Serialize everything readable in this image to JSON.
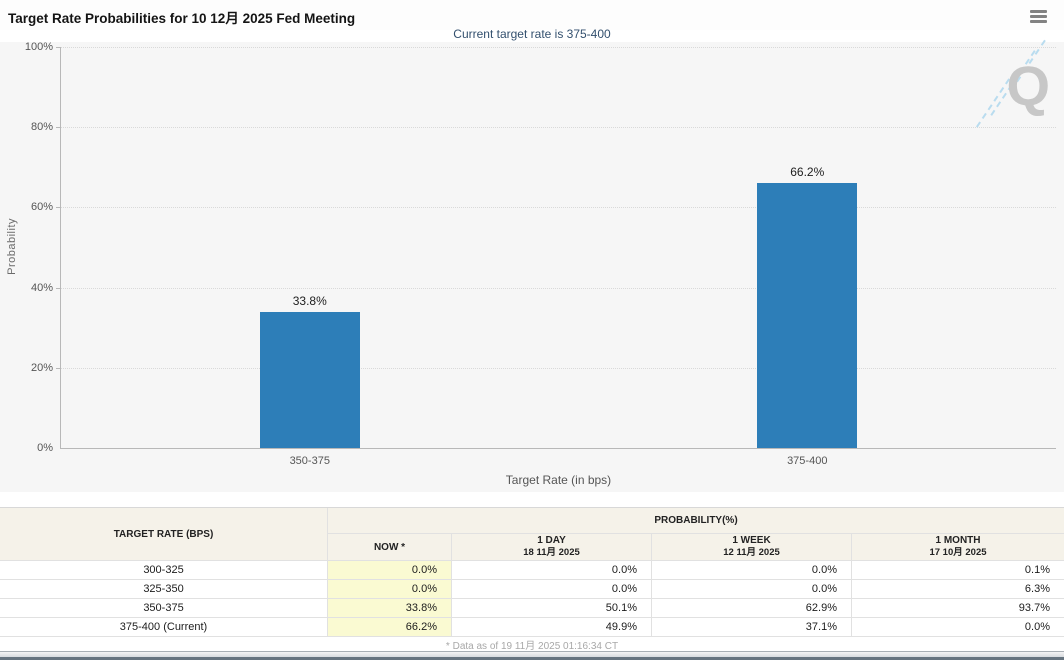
{
  "header": {
    "title": "Target Rate Probabilities for 10 12月 2025 Fed Meeting"
  },
  "subtitle": "Current target rate is 375-400",
  "chart_data": {
    "type": "bar",
    "title": "Target Rate Probabilities for 10 12月 2025 Fed Meeting",
    "categories": [
      "350-375",
      "375-400"
    ],
    "values": [
      33.8,
      66.2
    ],
    "value_labels": [
      "33.8%",
      "66.2%"
    ],
    "xlabel": "Target Rate (in bps)",
    "ylabel": "Probability",
    "ylim": [
      0,
      100
    ],
    "yticks": [
      "0%",
      "20%",
      "40%",
      "60%",
      "80%",
      "100%"
    ],
    "grid": "horizontal-dotted",
    "legend": "none",
    "bar_color": "#2d7eb8"
  },
  "watermark": {
    "letter": "Q"
  },
  "table": {
    "rate_header": "TARGET RATE (BPS)",
    "group_header": "PROBABILITY(%)",
    "columns": [
      {
        "label": "NOW *",
        "date": ""
      },
      {
        "label": "1 DAY",
        "date": "18 11月 2025"
      },
      {
        "label": "1 WEEK",
        "date": "12 11月 2025"
      },
      {
        "label": "1 MONTH",
        "date": "17 10月 2025"
      }
    ],
    "rows": [
      {
        "rate": "300-325",
        "values": [
          "0.0%",
          "0.0%",
          "0.0%",
          "0.1%"
        ]
      },
      {
        "rate": "325-350",
        "values": [
          "0.0%",
          "0.0%",
          "0.0%",
          "6.3%"
        ]
      },
      {
        "rate": "350-375",
        "values": [
          "33.8%",
          "50.1%",
          "62.9%",
          "93.7%"
        ]
      },
      {
        "rate": "375-400 (Current)",
        "values": [
          "66.2%",
          "49.9%",
          "37.1%",
          "0.0%"
        ]
      }
    ],
    "footnote": "* Data as of 19 11月 2025 01:16:34 CT"
  },
  "colors": {
    "bar": "#2d7eb8",
    "now_column_bg": "#fafad2",
    "subtitle": "#33506e",
    "chart_background": "#f6f6f6",
    "header_cell_bg": "#f5f2e9"
  }
}
